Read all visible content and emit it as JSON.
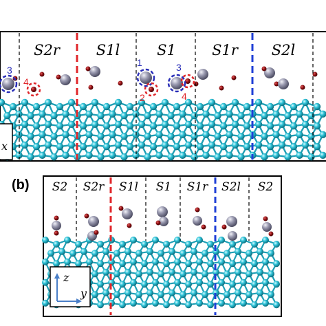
{
  "panel_a": {
    "region_labels": [
      "S2r",
      "S1l",
      "S1",
      "S1r",
      "S2l"
    ],
    "site_numbers": [
      "3",
      "4",
      "1",
      "2",
      "3",
      "4"
    ],
    "axis_fragment": "x"
  },
  "panel_b": {
    "tag": "(b)",
    "region_labels": [
      "S2",
      "S2r",
      "S1l",
      "S1",
      "S1r",
      "S2l",
      "S2"
    ],
    "axis_z": "z",
    "axis_y": "y"
  },
  "colors": {
    "substrate_atom": "#27b8cf",
    "large_atom": "#8f8fa6",
    "small_atom": "#8b0d10",
    "red_boundary": "#e0262a",
    "blue_boundary": "#1f3fd6",
    "site_blue": "#2a2fb8",
    "site_red": "#e0262a"
  }
}
